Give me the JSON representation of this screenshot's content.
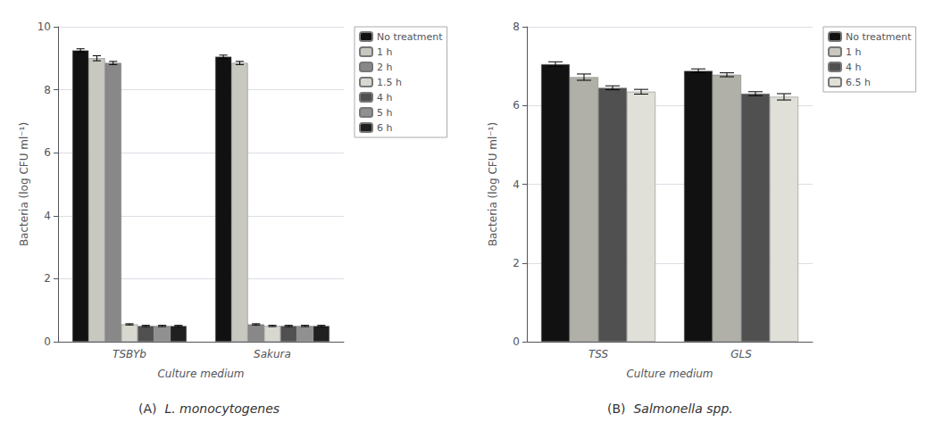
{
  "chart_data": [
    {
      "type": "bar",
      "subtitle": "(A) L. monocytogenes",
      "xlabel": "Culture medium",
      "ylabel": "Bacteria (log CFU ml⁻¹)",
      "categories": [
        "TSBYb",
        "Sakura"
      ],
      "ylim": [
        0,
        10
      ],
      "yticks": [
        0,
        2,
        4,
        6,
        8,
        10
      ],
      "legend": "upper right",
      "series": [
        {
          "name": "No treatment",
          "color": "#111111",
          "values": [
            9.25,
            9.05
          ],
          "errors": [
            0.05,
            0.05
          ]
        },
        {
          "name": "1 h",
          "color": "#c8c8c0",
          "values": [
            9.0,
            8.85
          ],
          "errors": [
            0.08,
            0.05
          ]
        },
        {
          "name": "2 h",
          "color": "#888888",
          "values": [
            8.85,
            0.55
          ],
          "errors": [
            0.05,
            0.02
          ]
        },
        {
          "name": "1.5 h",
          "color": "#d8d8d0",
          "values": [
            0.55,
            0.5
          ],
          "errors": [
            0.02,
            0.02
          ]
        },
        {
          "name": "4 h",
          "color": "#505050",
          "values": [
            0.5,
            0.5
          ],
          "errors": [
            0.02,
            0.02
          ]
        },
        {
          "name": "5 h",
          "color": "#909090",
          "values": [
            0.5,
            0.5
          ],
          "errors": [
            0.02,
            0.02
          ]
        },
        {
          "name": "6 h",
          "color": "#202020",
          "values": [
            0.5,
            0.5
          ],
          "errors": [
            0.02,
            0.02
          ]
        }
      ]
    },
    {
      "type": "bar",
      "subtitle": "(B) Salmonella spp.",
      "xlabel": "Culture medium",
      "ylabel": "Bacteria (log CFU ml⁻¹)",
      "categories": [
        "TSS",
        "GLS"
      ],
      "ylim": [
        0,
        8
      ],
      "yticks": [
        0,
        2,
        4,
        6,
        8
      ],
      "legend": "upper right",
      "series": [
        {
          "name": "No treatment",
          "color": "#111111",
          "values": [
            7.05,
            6.88
          ],
          "errors": [
            0.06,
            0.05
          ]
        },
        {
          "name": "1 h",
          "color": "#b0b0a8",
          "values": [
            6.72,
            6.78
          ],
          "errors": [
            0.08,
            0.05
          ]
        },
        {
          "name": "4 h",
          "color": "#505050",
          "values": [
            6.45,
            6.3
          ],
          "errors": [
            0.05,
            0.05
          ]
        },
        {
          "name": "6.5 h",
          "color": "#e0e0d8",
          "values": [
            6.35,
            6.22
          ],
          "errors": [
            0.06,
            0.08
          ]
        }
      ]
    }
  ]
}
